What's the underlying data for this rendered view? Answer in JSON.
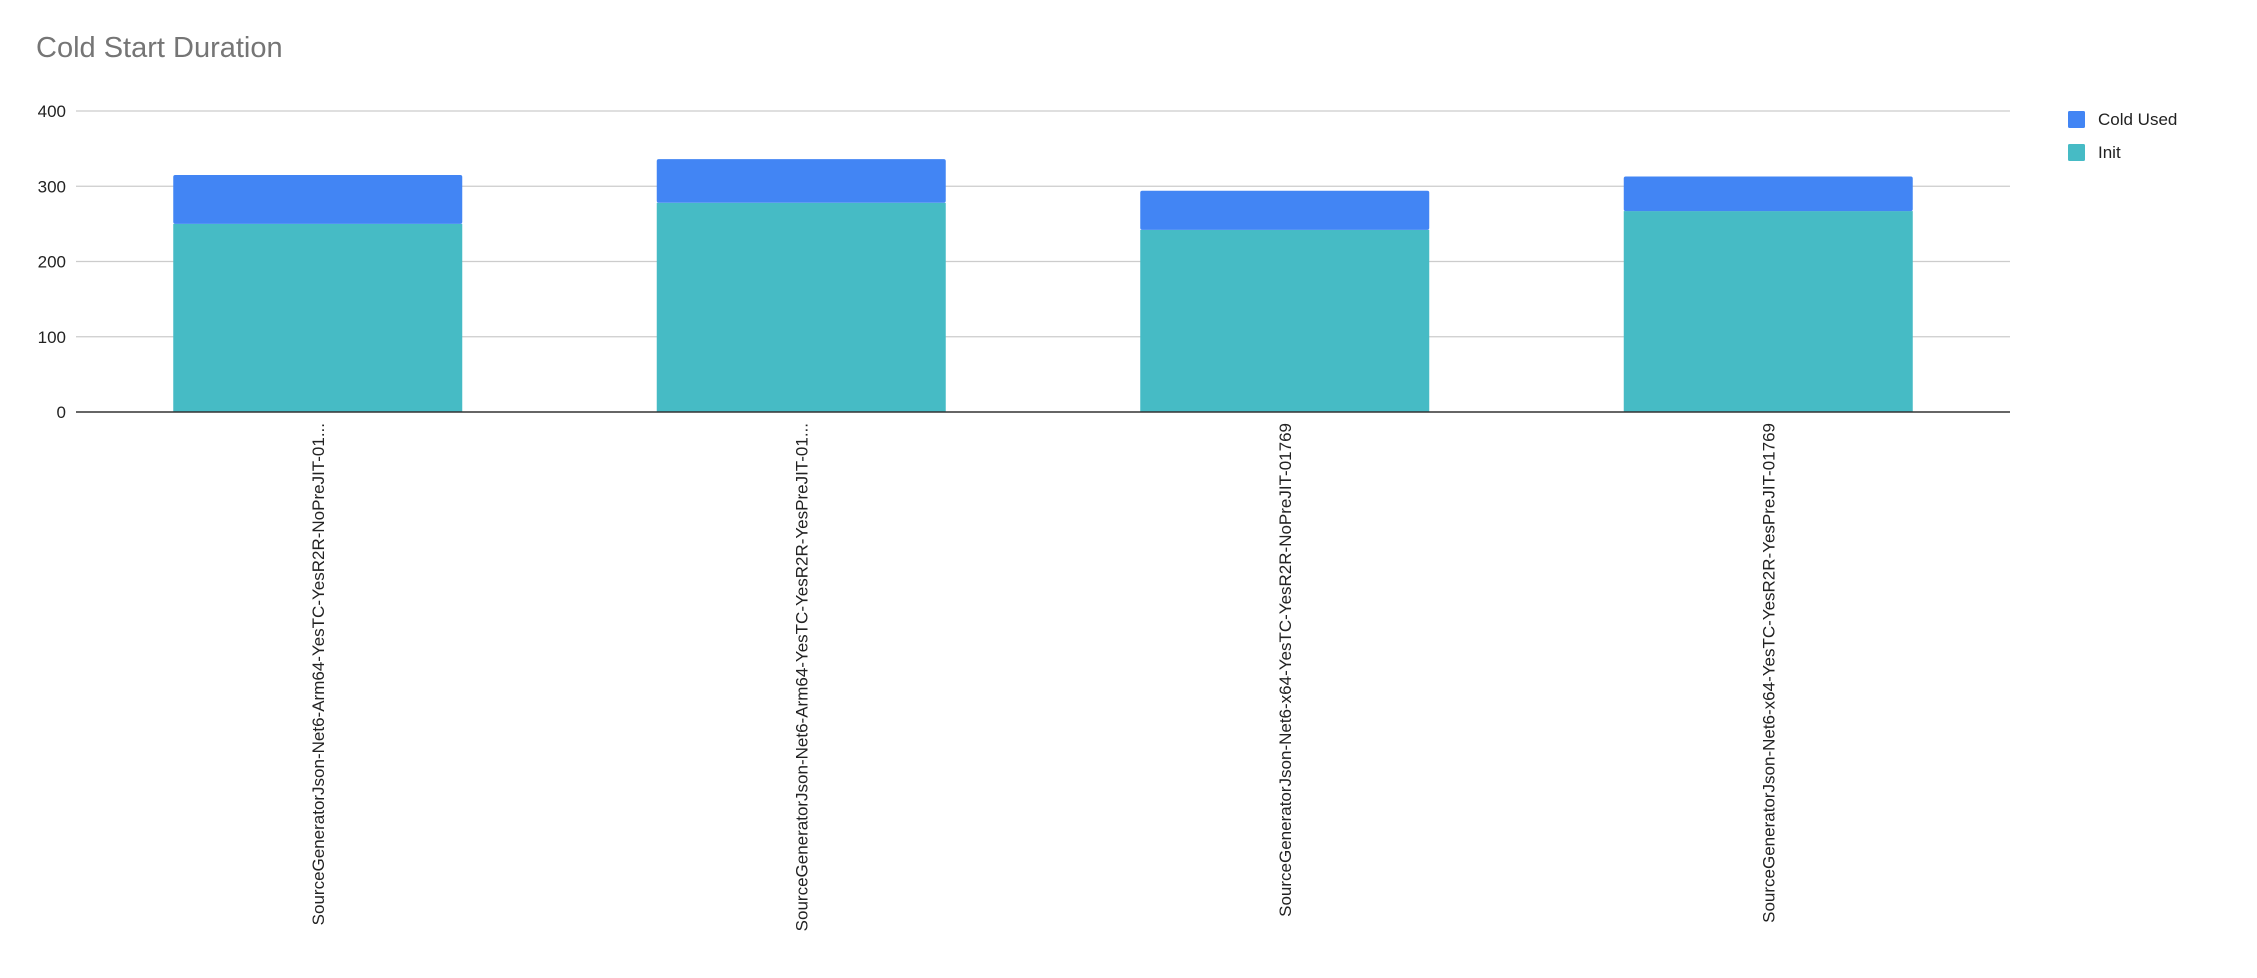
{
  "chart_data": {
    "type": "bar",
    "stacked": true,
    "title": "Cold Start Duration",
    "xlabel": "",
    "ylabel": "",
    "ylim": [
      0,
      400
    ],
    "yticks": [
      0,
      100,
      200,
      300,
      400
    ],
    "grid": true,
    "legend_position": "right",
    "categories": [
      "SourceGeneratorJson-Net6-Arm64-YesTC-YesR2R-NoPreJIT-01...",
      "SourceGeneratorJson-Net6-Arm64-YesTC-YesR2R-YesPreJIT-01...",
      "SourceGeneratorJson-Net6-x64-YesTC-YesR2R-NoPreJIT-01769",
      "SourceGeneratorJson-Net6-x64-YesTC-YesR2R-YesPreJIT-01769"
    ],
    "series": [
      {
        "name": "Init",
        "color": "#46bbc5",
        "values": [
          250,
          278,
          242,
          267
        ]
      },
      {
        "name": "Cold Used",
        "color": "#4285f4",
        "values": [
          65,
          58,
          52,
          46
        ]
      }
    ],
    "legend_order": [
      "Cold Used",
      "Init"
    ]
  }
}
